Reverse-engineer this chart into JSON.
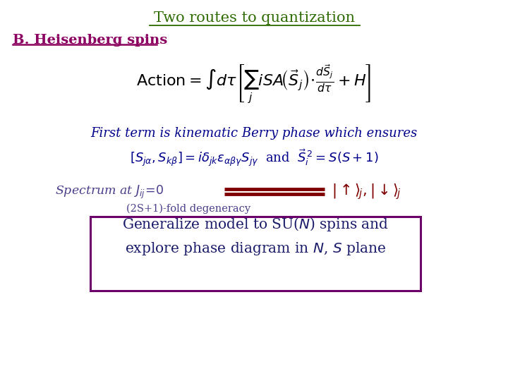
{
  "title": "Two routes to quantization",
  "title_color": "#2D6B00",
  "section_label": "B. Heisenberg spins",
  "section_color": "#8B0060",
  "berry_color": "#00008B",
  "commutator_color": "#00008B",
  "spectrum_text_color": "#483D8B",
  "spectrum_arrow_color": "#800000",
  "ket_color": "#800000",
  "degeneracy_color": "#483D8B",
  "box_color": "#6B006B",
  "box_text_color": "#1A1A6B",
  "background_color": "#ffffff"
}
